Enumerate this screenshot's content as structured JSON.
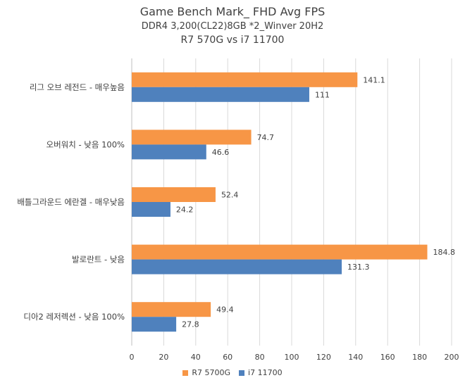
{
  "chart_data": {
    "type": "bar",
    "orientation": "horizontal",
    "title": "Game Bench Mark_ FHD Avg FPS",
    "subtitle": "DDR4 3,200(CL22)8GB *2_Winver 20H2",
    "subtitle2": "R7 570G vs i7 11700",
    "categories": [
      "리그 오브 레전드 - 매우높음",
      "오버워치 - 낮음 100%",
      "배틀그라운드 에란겔 - 매우낮음",
      "발로란트 - 낮음",
      "디아2 레저렉션 - 낮음 100%"
    ],
    "series": [
      {
        "name": "R7 5700G",
        "color": "#F79646",
        "values": [
          141.1,
          74.7,
          52.4,
          184.8,
          49.4
        ],
        "labels": [
          "141.1",
          "74.7",
          "52.4",
          "184.8",
          "49.4"
        ]
      },
      {
        "name": "i7 11700",
        "color": "#4F81BD",
        "values": [
          111,
          46.6,
          24.2,
          131.3,
          27.8
        ],
        "labels": [
          "111",
          "46.6",
          "24.2",
          "131.3",
          "27.8"
        ]
      }
    ],
    "xlim": [
      0,
      200
    ],
    "xticks": [
      "0",
      "20",
      "40",
      "60",
      "80",
      "100",
      "120",
      "140",
      "160",
      "180",
      "200"
    ],
    "grid": true,
    "legend_position": "bottom"
  }
}
